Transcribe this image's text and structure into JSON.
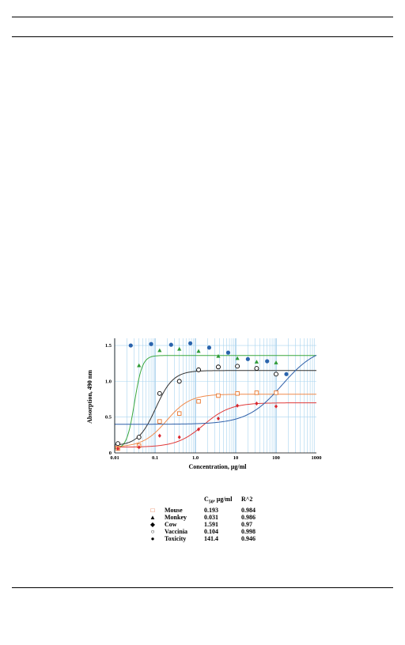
{
  "chart_data": {
    "type": "scatter",
    "title": "",
    "xlabel": "Concentration, μg/ml",
    "ylabel": "Absorption, 490 nm",
    "xscale": "log",
    "xlim": [
      0.01,
      1000
    ],
    "ylim": [
      0,
      1.6
    ],
    "xticks": [
      "0.01",
      "0.1",
      "1.0",
      "10",
      "100",
      "1000"
    ],
    "yticks": [
      "0",
      "0.5",
      "1.0",
      "1.5"
    ],
    "grid": true,
    "series": [
      {
        "name": "Mouse",
        "marker": "open-square",
        "color": "#e8752b",
        "x": [
          0.012,
          0.04,
          0.13,
          0.4,
          1.2,
          3.7,
          11,
          33,
          100
        ],
        "y": [
          0.06,
          0.1,
          0.44,
          0.55,
          0.72,
          0.8,
          0.83,
          0.84,
          0.84
        ]
      },
      {
        "name": "Monkey",
        "marker": "filled-triangle",
        "color": "#2e9a36",
        "x": [
          0.04,
          0.13,
          0.4,
          1.2,
          3.7,
          11,
          33,
          100
        ],
        "y": [
          1.22,
          1.43,
          1.45,
          1.42,
          1.35,
          1.32,
          1.27,
          1.26
        ]
      },
      {
        "name": "Cow",
        "marker": "filled-diamond",
        "color": "#d9262e",
        "x": [
          0.012,
          0.04,
          0.13,
          0.4,
          1.2,
          3.7,
          11,
          33,
          100
        ],
        "y": [
          0.06,
          0.08,
          0.24,
          0.22,
          0.33,
          0.48,
          0.66,
          0.69,
          0.65
        ]
      },
      {
        "name": "Vaccinia",
        "marker": "open-circle",
        "color": "#000000",
        "x": [
          0.012,
          0.04,
          0.13,
          0.4,
          1.2,
          3.7,
          11,
          33,
          100
        ],
        "y": [
          0.13,
          0.22,
          0.83,
          1.0,
          1.16,
          1.2,
          1.21,
          1.18,
          1.1
        ]
      },
      {
        "name": "Toxicity",
        "marker": "filled-circle",
        "color": "#2a64ad",
        "x": [
          0.025,
          0.08,
          0.25,
          0.75,
          2.2,
          6.5,
          20,
          60,
          180
        ],
        "y": [
          1.5,
          1.52,
          1.51,
          1.53,
          1.47,
          1.4,
          1.31,
          1.28,
          1.1
        ]
      }
    ],
    "curves": [
      {
        "series": "Mouse",
        "color": "#f08a4b",
        "bottom": 0.08,
        "top": 0.82,
        "ec50": 0.193,
        "hill": 1.5
      },
      {
        "series": "Monkey",
        "color": "#3aa83f",
        "bottom": 0.05,
        "top": 1.36,
        "ec50": 0.031,
        "hill": 4.5
      },
      {
        "series": "Cow",
        "color": "#e03a3a",
        "bottom": 0.08,
        "top": 0.7,
        "ec50": 1.591,
        "hill": 1.3
      },
      {
        "series": "Vaccinia",
        "color": "#333333",
        "bottom": 0.1,
        "top": 1.15,
        "ec50": 0.104,
        "hill": 2.0
      },
      {
        "series": "Toxicity",
        "color": "#2f5fa8",
        "top": 1.5,
        "bottom": 0.4,
        "ec50": 141.4,
        "hill": 1.0
      }
    ],
    "legend_table": {
      "col_c50": "C",
      "col_c50_sub": "50",
      "col_c50_unit": ", μg/ml",
      "col_r2": "R^2",
      "rows": [
        {
          "symbol": "□",
          "color": "#e05a28",
          "name": "Mouse",
          "c50": "0.193",
          "r2": "0.984"
        },
        {
          "symbol": "▲",
          "color": "#000000",
          "name": "Monkey",
          "c50": "0.031",
          "r2": "0.986"
        },
        {
          "symbol": "◆",
          "color": "#000000",
          "name": "Cow",
          "c50": "1.591",
          "r2": "0.97"
        },
        {
          "symbol": "○",
          "color": "#000000",
          "name": "Vaccinia",
          "c50": "0.104",
          "r2": "0.998"
        },
        {
          "symbol": "●",
          "color": "#000000",
          "name": "Toxicity",
          "c50": "141.4",
          "r2": "0.946"
        }
      ]
    }
  }
}
